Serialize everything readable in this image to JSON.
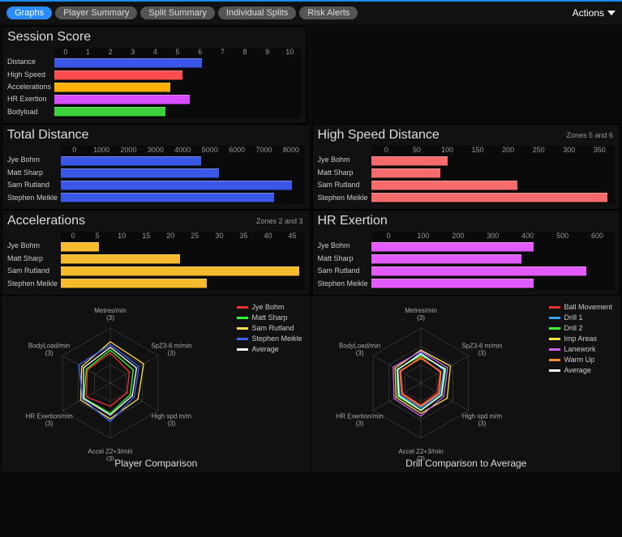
{
  "tabs": {
    "items": [
      {
        "label": "Graphs",
        "active": true
      },
      {
        "label": "Player Summary",
        "active": false
      },
      {
        "label": "Split Summary",
        "active": false
      },
      {
        "label": "Individual Splits",
        "active": false
      },
      {
        "label": "Risk Alerts",
        "active": false
      }
    ],
    "actions_label": "Actions"
  },
  "colors": {
    "blue": "#3b57e6",
    "red": "#ff4d4d",
    "orange": "#ffb000",
    "magenta": "#d84dff",
    "green": "#3bd13b",
    "salmon": "#f56a6a",
    "gold": "#f6bb2c",
    "pink": "#e25bff",
    "white": "#ffffff",
    "grid": "#444",
    "text": "#ccc",
    "panel_bg": "#111",
    "page_bg": "#0a0a0a"
  },
  "session_score": {
    "title": "Session Score",
    "xmin": 0,
    "xmax": 10,
    "xtick_step": 1,
    "rows": [
      {
        "label": "Distance",
        "value": 6.0,
        "color": "#3b57e6"
      },
      {
        "label": "High Speed",
        "value": 5.2,
        "color": "#ff4d4d"
      },
      {
        "label": "Accelerations",
        "value": 4.7,
        "color": "#ffb000"
      },
      {
        "label": "HR Exertion",
        "value": 5.5,
        "color": "#d84dff"
      },
      {
        "label": "Bodyload",
        "value": 4.5,
        "color": "#3bd13b"
      }
    ]
  },
  "players": [
    "Jye Bohm",
    "Matt Sharp",
    "Sam Rutland",
    "Stephen Meikle"
  ],
  "total_distance": {
    "title": "Total Distance",
    "xmin": 0,
    "xmax": 8000,
    "xtick_step": 1000,
    "bar_color": "#3b57e6",
    "values": [
      4600,
      5200,
      7600,
      7000
    ]
  },
  "high_speed_distance": {
    "title": "High Speed Distance",
    "subtitle": "Zones 5 and 6",
    "xmin": 0,
    "xmax": 350,
    "xtick_step": 50,
    "bar_color": "#f56a6a",
    "values": [
      110,
      100,
      210,
      340
    ]
  },
  "accelerations": {
    "title": "Accelerations",
    "subtitle": "Zones 2 and 3",
    "xmin": 0,
    "xmax": 45,
    "xtick_step": 5,
    "bar_color": "#f6bb2c",
    "values": [
      7,
      22,
      44,
      27
    ]
  },
  "hr_exertion": {
    "title": "HR Exertion",
    "xmin": 0,
    "xmax": 600,
    "xtick_step": 100,
    "bar_color": "#e25bff",
    "values": [
      400,
      370,
      530,
      400
    ]
  },
  "radar_axes": [
    {
      "label": "Metres/min",
      "sub": "(3)"
    },
    {
      "label": "SpZ3-6 m/min",
      "sub": "(3)"
    },
    {
      "label": "High spd m/m",
      "sub": "(3)"
    },
    {
      "label": "Accel Z2+3/min",
      "sub": "(3)"
    },
    {
      "label": "HR Exertion/min",
      "sub": "(3)"
    },
    {
      "label": "BodyLoad/min",
      "sub": "(3)"
    }
  ],
  "radar_rings": 3,
  "player_comparison": {
    "title": "Player Comparison",
    "series": [
      {
        "label": "Jye Bohm",
        "color": "#ff3030",
        "values": [
          0.55,
          0.4,
          0.35,
          0.42,
          0.5,
          0.48
        ]
      },
      {
        "label": "Matt Sharp",
        "color": "#30ff30",
        "values": [
          0.6,
          0.48,
          0.42,
          0.55,
          0.55,
          0.5
        ]
      },
      {
        "label": "Sam Rutland",
        "color": "#ffe040",
        "values": [
          0.75,
          0.7,
          0.58,
          0.65,
          0.62,
          0.6
        ]
      },
      {
        "label": "Stephen Meikle",
        "color": "#4060ff",
        "values": [
          0.7,
          0.6,
          0.5,
          0.7,
          0.58,
          0.66
        ]
      },
      {
        "label": "Average",
        "color": "#ffffff",
        "values": [
          0.65,
          0.55,
          0.46,
          0.58,
          0.56,
          0.56
        ]
      }
    ]
  },
  "drill_comparison": {
    "title": "Drill Comparison to Average",
    "series": [
      {
        "label": "Ball Movement",
        "color": "#ff3030",
        "values": [
          0.48,
          0.4,
          0.35,
          0.4,
          0.38,
          0.42
        ]
      },
      {
        "label": "Drill 1",
        "color": "#30a0ff",
        "values": [
          0.55,
          0.48,
          0.4,
          0.45,
          0.44,
          0.48
        ]
      },
      {
        "label": "Drill 2",
        "color": "#30ff30",
        "values": [
          0.5,
          0.52,
          0.44,
          0.5,
          0.48,
          0.5
        ]
      },
      {
        "label": "Imp Areas",
        "color": "#ffe040",
        "values": [
          0.6,
          0.62,
          0.55,
          0.55,
          0.52,
          0.54
        ]
      },
      {
        "label": "Lanework",
        "color": "#d060ff",
        "values": [
          0.58,
          0.56,
          0.48,
          0.6,
          0.56,
          0.58
        ]
      },
      {
        "label": "Warm Up",
        "color": "#ff9030",
        "values": [
          0.45,
          0.42,
          0.38,
          0.42,
          0.4,
          0.44
        ]
      },
      {
        "label": "Average",
        "color": "#ffffff",
        "values": [
          0.53,
          0.5,
          0.43,
          0.49,
          0.46,
          0.49
        ]
      }
    ]
  }
}
